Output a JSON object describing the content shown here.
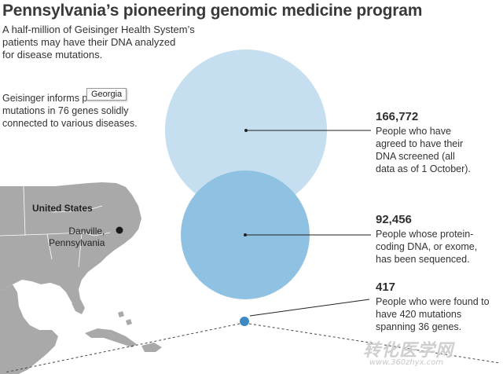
{
  "title": "Pennsylvania’s pioneering genomic medicine program",
  "intro": {
    "lines": [
      "A half-million of Geisinger Health System’s",
      "patients may have their DNA analyzed",
      "for disease mutations."
    ]
  },
  "description": {
    "lines": [
      "Geisinger informs p",
      "mutations in 76 genes solidly",
      "connected to various diseases."
    ]
  },
  "tooltip": {
    "label": "Georgia"
  },
  "stats": [
    {
      "value": "166,772",
      "lines": [
        "People who have",
        "agreed to have their",
        "DNA screened (all",
        "data as of 1 October)."
      ]
    },
    {
      "value": "92,456",
      "lines": [
        "People whose protein-",
        "coding DNA, or exome,",
        "has been sequenced."
      ]
    },
    {
      "value": "417",
      "lines": [
        "People who were found to",
        "have 420 mutations",
        "spanning 36 genes."
      ]
    }
  ],
  "chart_data": {
    "type": "bubble",
    "series": [
      {
        "values": [
          166772,
          92456,
          417
        ]
      }
    ]
  },
  "map": {
    "country_label": "United States",
    "city_lines": [
      "Danville,",
      "Pennsylvania"
    ]
  },
  "colors": {
    "circle_large": "#c6dff0",
    "circle_medium": "#8fc1e3",
    "circle_small": "#3b8ac4",
    "land": "#a9a9a9",
    "sea": "#ffffff"
  },
  "watermark": {
    "text": "转化医学网",
    "sub": "www.360zhyx.com"
  }
}
